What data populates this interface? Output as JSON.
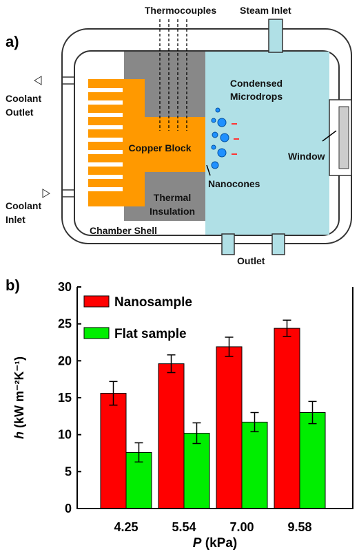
{
  "diagram": {
    "panel_label": "a)",
    "labels": [
      "Thermocouples",
      "Steam Inlet",
      "Condensed",
      "Microdrops",
      "Coolant",
      "Outlet",
      "Copper Block",
      "Window",
      "Nanocones",
      "Thermal",
      "Insulation",
      "Coolant",
      "Inlet",
      "Chamber Shell",
      "Outlet"
    ]
  },
  "chart_data": {
    "type": "bar",
    "panel_label": "b)",
    "y_label": {
      "symbol": "h",
      "unit": "(kW m⁻²K⁻¹)"
    },
    "x_label": {
      "symbol": "P",
      "unit": "(kPa)"
    },
    "categories": [
      "4.25",
      "5.54",
      "7.00",
      "9.58"
    ],
    "series": [
      {
        "name": "Nanosample",
        "color": "#ff0000",
        "values": [
          15.6,
          19.6,
          21.9,
          24.4
        ],
        "errors": [
          1.6,
          1.2,
          1.3,
          1.1
        ]
      },
      {
        "name": "Flat sample",
        "color": "#00ee00",
        "values": [
          7.6,
          10.2,
          11.7,
          13.0
        ],
        "errors": [
          1.3,
          1.4,
          1.3,
          1.5
        ]
      }
    ],
    "ylim": [
      0,
      30
    ],
    "yticks": [
      0,
      5,
      10,
      15,
      20,
      25,
      30
    ],
    "grid": false
  }
}
